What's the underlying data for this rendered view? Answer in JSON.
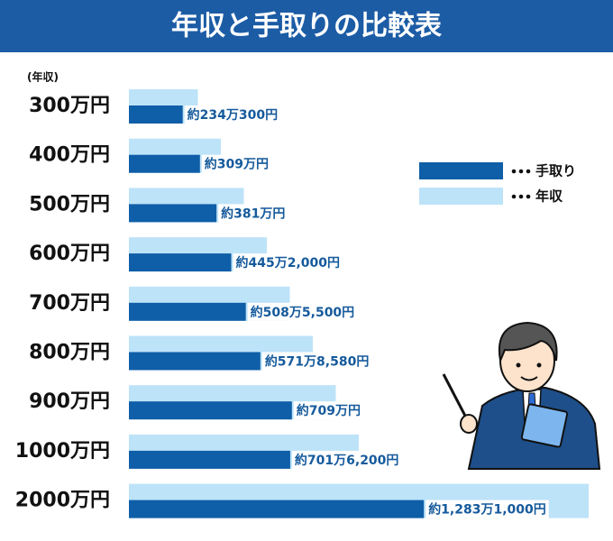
{
  "chart_data": {
    "type": "bar",
    "orientation": "horizontal",
    "title": "年収と手取りの比較表",
    "y_label": "(年収)",
    "categories": [
      "300万円",
      "400万円",
      "500万円",
      "600万円",
      "700万円",
      "800万円",
      "900万円",
      "1000万円",
      "2000万円"
    ],
    "xlim": [
      0,
      2000
    ],
    "legend": "right",
    "series": [
      {
        "name": "年収",
        "color": "#bde3f8",
        "values": [
          300,
          400,
          500,
          600,
          700,
          800,
          900,
          1000,
          2000
        ]
      },
      {
        "name": "手取り",
        "color": "#0f5ea8",
        "values": [
          234.03,
          309,
          381,
          445.2,
          508.55,
          571.858,
          709,
          701.62,
          1283.1
        ],
        "value_labels": [
          "約234万300円",
          "約309万円",
          "約381万円",
          "約445万2,000円",
          "約508万5,500円",
          "約571万8,580円",
          "約709万円",
          "約701万6,200円",
          "約1,283万1,000円"
        ]
      }
    ]
  }
}
